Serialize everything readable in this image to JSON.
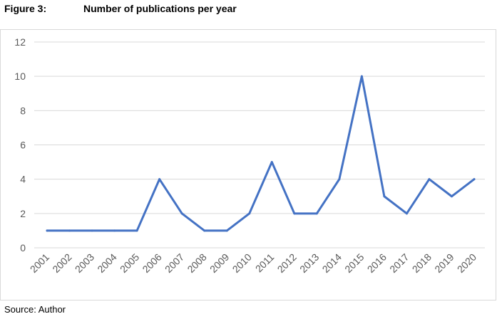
{
  "figure": {
    "label": "Figure 3:",
    "title": "Number of publications per year",
    "source": "Source: Author"
  },
  "chart_data": {
    "type": "line",
    "title": "Number of publications per year",
    "xlabel": "",
    "ylabel": "",
    "categories": [
      "2001",
      "2002",
      "2003",
      "2004",
      "2005",
      "2006",
      "2007",
      "2008",
      "2009",
      "2010",
      "2011",
      "2012",
      "2013",
      "2014",
      "2015",
      "2016",
      "2017",
      "2018",
      "2019",
      "2020"
    ],
    "series": [
      {
        "values": [
          1,
          1,
          1,
          1,
          1,
          4,
          2,
          1,
          1,
          2,
          5,
          2,
          2,
          4,
          10,
          3,
          2,
          4,
          3,
          4
        ],
        "color": "#4472c4"
      }
    ],
    "ylim": [
      0,
      12
    ],
    "yticks": [
      0,
      2,
      4,
      6,
      8,
      10,
      12
    ],
    "grid": true,
    "legend": "none"
  }
}
